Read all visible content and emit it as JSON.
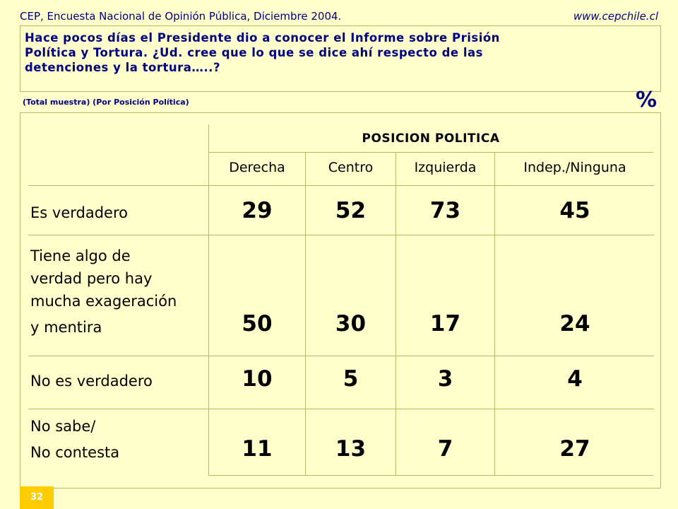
{
  "header": {
    "source": "CEP, Encuesta Nacional de Opinión Pública, Diciembre 2004.",
    "website": "www.cepchile.cl"
  },
  "question": {
    "line1": "Hace pocos días el Presidente dio a conocer el Informe sobre Prisión",
    "line2": "Política y Tortura.  ¿Ud. cree que lo que se dice ahí respecto de las",
    "line3": "detenciones y la tortura…..?"
  },
  "subtitle": "(Total muestra) (Por Posición Política)",
  "unit_symbol": "%",
  "table": {
    "group_header": "POSICION POLITICA",
    "columns": [
      "Derecha",
      "Centro",
      "Izquierda",
      "Indep./Ninguna"
    ],
    "rows": [
      {
        "label_lines": [
          "Es verdadero"
        ],
        "values": [
          "29",
          "52",
          "73",
          "45"
        ]
      },
      {
        "label_lines": [
          "Tiene algo de",
          "verdad pero hay",
          "mucha exageración",
          "y mentira"
        ],
        "values": [
          "50",
          "30",
          "17",
          "24"
        ]
      },
      {
        "label_lines": [
          "No es verdadero"
        ],
        "values": [
          "10",
          "5",
          "3",
          "4"
        ]
      },
      {
        "label_lines": [
          "No sabe/",
          "No contesta"
        ],
        "values": [
          "11",
          "13",
          "7",
          "27"
        ]
      }
    ]
  },
  "page_number": "32",
  "colors": {
    "background": "#ffffcc",
    "title_text": "#000080",
    "border": "#b8b860",
    "page_badge": "#ffcc00"
  }
}
